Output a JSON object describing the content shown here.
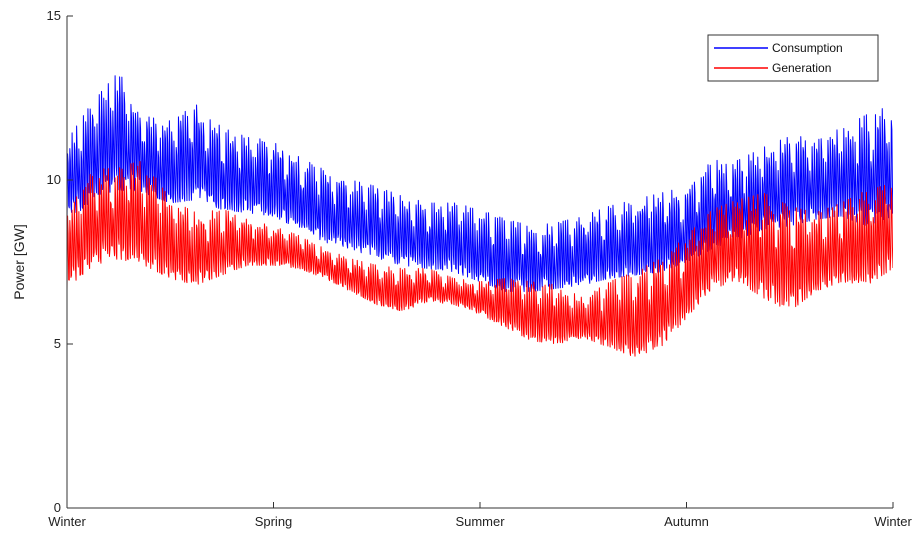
{
  "chart_data": {
    "type": "line",
    "title": "",
    "xlabel": "",
    "ylabel": "Power [GW]",
    "ylim": [
      0,
      15
    ],
    "yticks": [
      0,
      5,
      10,
      15
    ],
    "x_categories": [
      "Winter",
      "Spring",
      "Summer",
      "Autumn",
      "Winter"
    ],
    "xlim": [
      0,
      4
    ],
    "grid": false,
    "legend_position": "top-right",
    "colors": {
      "consumption": "#0000ff",
      "generation": "#ff0000"
    },
    "series": [
      {
        "name": "Consumption",
        "color": "#0000ff",
        "envelope_x": [
          0,
          0.125,
          0.25,
          0.375,
          0.5,
          0.625,
          0.75,
          0.875,
          1.0,
          1.125,
          1.25,
          1.375,
          1.5,
          1.625,
          1.75,
          1.875,
          2.0,
          2.125,
          2.25,
          2.375,
          2.5,
          2.625,
          2.75,
          2.875,
          3.0,
          3.125,
          3.25,
          3.375,
          3.5,
          3.625,
          3.75,
          3.875,
          4.0
        ],
        "envelope_low": [
          8.7,
          9.4,
          9.7,
          9.6,
          9.3,
          9.4,
          9.1,
          9.0,
          8.9,
          8.5,
          8.1,
          7.9,
          7.6,
          7.4,
          7.3,
          7.2,
          6.9,
          6.6,
          6.6,
          6.7,
          6.8,
          7.0,
          7.1,
          7.2,
          7.5,
          7.9,
          8.2,
          8.5,
          8.6,
          8.8,
          8.9,
          8.6,
          8.9
        ],
        "envelope_high": [
          11.2,
          12.4,
          13.3,
          12.0,
          11.8,
          12.3,
          11.6,
          11.3,
          11.2,
          10.7,
          10.3,
          10.0,
          9.8,
          9.5,
          9.3,
          9.3,
          9.1,
          8.8,
          8.6,
          8.7,
          8.9,
          9.2,
          9.4,
          9.6,
          9.8,
          10.6,
          10.6,
          11.0,
          11.4,
          11.3,
          11.6,
          12.0,
          12.3
        ]
      },
      {
        "name": "Generation",
        "color": "#ff0000",
        "envelope_x": [
          0,
          0.125,
          0.25,
          0.375,
          0.5,
          0.625,
          0.75,
          0.875,
          1.0,
          1.125,
          1.25,
          1.375,
          1.5,
          1.625,
          1.75,
          1.875,
          2.0,
          2.125,
          2.25,
          2.375,
          2.5,
          2.625,
          2.75,
          2.875,
          3.0,
          3.125,
          3.25,
          3.375,
          3.5,
          3.625,
          3.75,
          3.875,
          4.0
        ],
        "envelope_low": [
          6.6,
          7.4,
          7.6,
          7.4,
          7.0,
          6.8,
          7.1,
          7.4,
          7.4,
          7.3,
          7.0,
          6.6,
          6.2,
          6.0,
          6.3,
          6.2,
          5.9,
          5.5,
          5.1,
          5.0,
          5.2,
          4.9,
          4.6,
          4.9,
          5.8,
          6.7,
          6.9,
          6.4,
          6.0,
          6.6,
          6.9,
          6.8,
          7.3
        ],
        "envelope_high": [
          9.0,
          10.3,
          10.4,
          10.6,
          9.4,
          9.0,
          9.1,
          8.9,
          8.6,
          8.3,
          7.9,
          7.6,
          7.4,
          7.3,
          7.3,
          7.0,
          6.9,
          7.0,
          6.9,
          6.8,
          6.4,
          6.9,
          7.2,
          7.6,
          8.3,
          9.1,
          9.4,
          9.6,
          9.2,
          9.0,
          9.3,
          9.7,
          9.9
        ]
      }
    ]
  }
}
